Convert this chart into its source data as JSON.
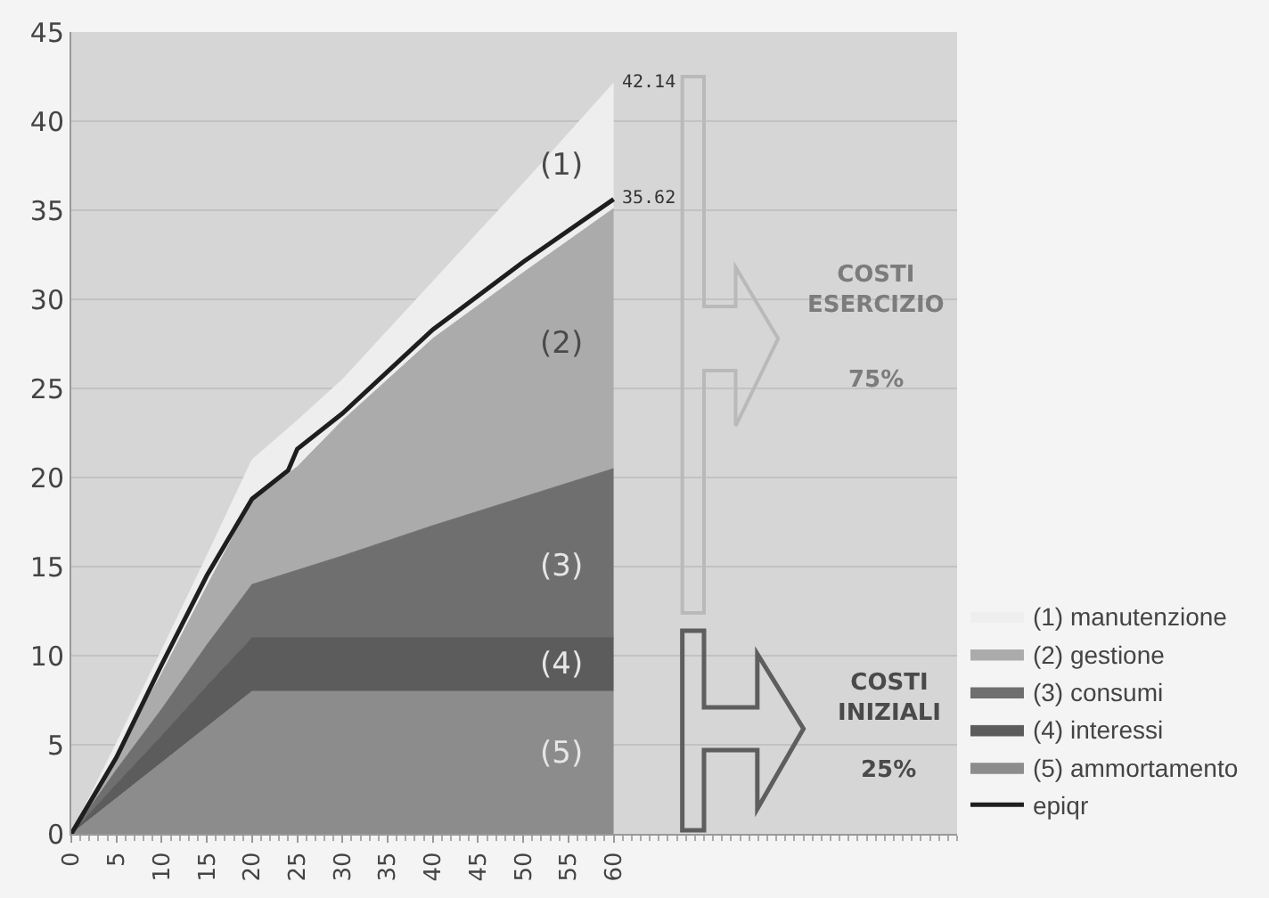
{
  "chart_data": {
    "type": "area",
    "stacked": true,
    "x": [
      0,
      5,
      10,
      15,
      20,
      25,
      30,
      40,
      50,
      60
    ],
    "series": [
      {
        "name": "(5) ammortamento",
        "color": "#8c8c8c",
        "values": [
          0,
          2,
          4,
          6,
          8,
          8,
          8,
          8,
          8,
          8
        ]
      },
      {
        "name": "(4) interessi",
        "color": "#5c5c5c",
        "values": [
          0,
          0.8,
          1.5,
          2.3,
          3,
          3,
          3,
          3,
          3,
          3
        ]
      },
      {
        "name": "(3) consumi",
        "color": "#6f6f6f",
        "values": [
          0,
          0.8,
          1.5,
          2.3,
          3,
          3.8,
          4.6,
          6.3,
          7.9,
          9.5
        ]
      },
      {
        "name": "(2) gestione",
        "color": "#ababab",
        "values": [
          0,
          0.8,
          2,
          3.3,
          4.7,
          5.8,
          7.6,
          10.5,
          12.6,
          14.6
        ]
      },
      {
        "name": "(1) manutenzione",
        "color": "#eeeeee",
        "values": [
          0,
          0.7,
          1.3,
          1.7,
          2.3,
          2.6,
          2.3,
          3.2,
          5,
          7.04
        ]
      },
      {
        "name": "epiqr",
        "type": "line",
        "color": "#1e1e1e",
        "x": [
          0,
          5,
          10,
          15,
          20,
          22,
          24,
          25,
          30,
          40,
          50,
          60
        ],
        "values": [
          0,
          4.3,
          9.5,
          14.5,
          18.8,
          19.6,
          20.4,
          21.6,
          23.6,
          28.3,
          32.1,
          35.62
        ]
      }
    ],
    "xlim": [
      0,
      98
    ],
    "xticks": [
      0,
      5,
      10,
      15,
      20,
      25,
      30,
      35,
      40,
      45,
      50,
      55,
      60
    ],
    "ylim": [
      0,
      45
    ],
    "yticks": [
      0,
      5,
      10,
      15,
      20,
      25,
      30,
      35,
      40,
      45
    ],
    "grid": "y",
    "legend": "bottom right",
    "annotations": [
      {
        "text": "42.14",
        "x": 60,
        "y": 42.14
      },
      {
        "text": "35.62",
        "x": 60,
        "y": 35.62
      },
      "(1)",
      "(2)",
      "(3)",
      "(4)",
      "(5)",
      "COSTI\nESERCIZIO",
      "75%",
      "COSTI\nINIZIALI",
      "25%"
    ]
  }
}
